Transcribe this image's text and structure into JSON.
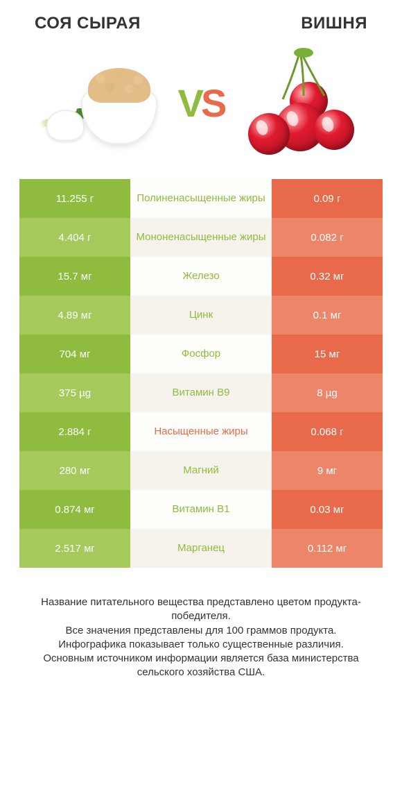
{
  "header": {
    "left_title": "СОЯ СЫРАЯ",
    "right_title": "ВИШНЯ",
    "vs_v": "V",
    "vs_s": "S"
  },
  "colors": {
    "left_odd": "#8fbb3f",
    "left_even": "#a5c95b",
    "right_odd": "#e86a4a",
    "right_even": "#ed8569",
    "mid_odd": "#fdfdfa",
    "mid_even": "#f6f3ed",
    "label_left_win": "#8fbb3f",
    "label_right_win": "#e86a4a",
    "footer_text": "#333333"
  },
  "rows": [
    {
      "left": "11.255 г",
      "label": "Полиненасыщенные жиры",
      "right": "0.09 г",
      "winner": "left"
    },
    {
      "left": "4.404 г",
      "label": "Мононенасыщенные жиры",
      "right": "0.082 г",
      "winner": "left"
    },
    {
      "left": "15.7 мг",
      "label": "Железо",
      "right": "0.32 мг",
      "winner": "left"
    },
    {
      "left": "4.89 мг",
      "label": "Цинк",
      "right": "0.1 мг",
      "winner": "left"
    },
    {
      "left": "704 мг",
      "label": "Фосфор",
      "right": "15 мг",
      "winner": "left"
    },
    {
      "left": "375 µg",
      "label": "Витамин B9",
      "right": "8 µg",
      "winner": "left"
    },
    {
      "left": "2.884 г",
      "label": "Насыщенные жиры",
      "right": "0.068 г",
      "winner": "right"
    },
    {
      "left": "280 мг",
      "label": "Магний",
      "right": "9 мг",
      "winner": "left"
    },
    {
      "left": "0.874 мг",
      "label": "Витамин B1",
      "right": "0.03 мг",
      "winner": "left"
    },
    {
      "left": "2.517 мг",
      "label": "Марганец",
      "right": "0.112 мг",
      "winner": "left"
    }
  ],
  "footer": {
    "line1": "Название питательного вещества представлено цветом продукта-победителя.",
    "line2": "Все значения представлены для 100 граммов продукта.",
    "line3": "Инфографика показывает только существенные различия.",
    "line4": "Основным источником информации является база министерства сельского хозяйства США."
  }
}
